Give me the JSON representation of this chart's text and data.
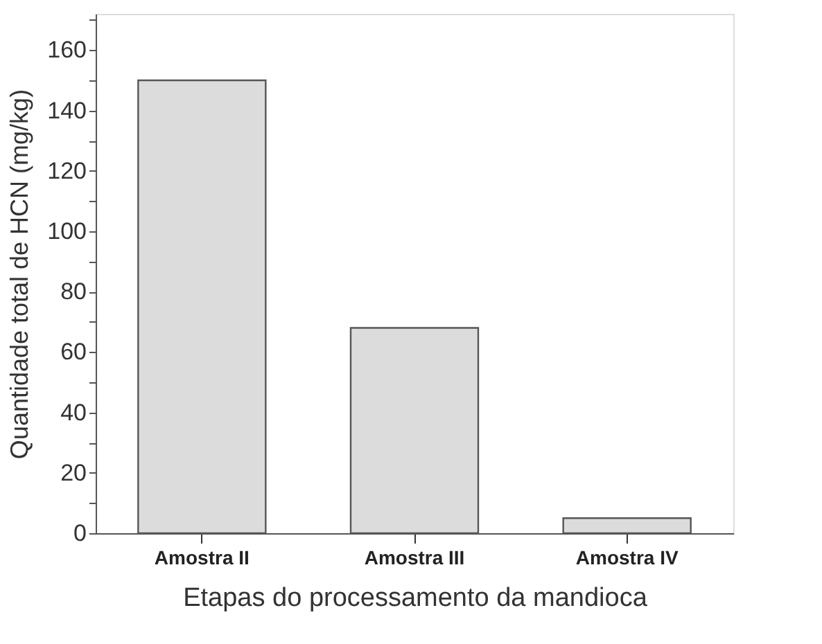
{
  "chart_data": {
    "type": "bar",
    "xlabel": "Etapas do processamento da mandioca",
    "ylabel": "Quantidade total de HCN (mg/kg)",
    "categories": [
      "Amostra II",
      "Amostra III",
      "Amostra IV"
    ],
    "values": [
      150,
      68,
      5
    ],
    "color": "#dcdcdc",
    "ylim": [
      0,
      172
    ],
    "yticks": [
      0,
      {
        "value": 10,
        "label": null
      },
      20,
      {
        "value": 30,
        "label": null
      },
      40,
      {
        "value": 50,
        "label": null
      },
      60,
      {
        "value": 70,
        "label": null
      },
      80,
      {
        "value": 90,
        "label": null
      },
      100,
      {
        "value": 110,
        "label": null
      },
      120,
      {
        "value": 130,
        "label": null
      },
      140,
      {
        "value": 150,
        "label": null
      },
      160,
      {
        "value": 170,
        "label": null
      }
    ],
    "grid": false
  }
}
